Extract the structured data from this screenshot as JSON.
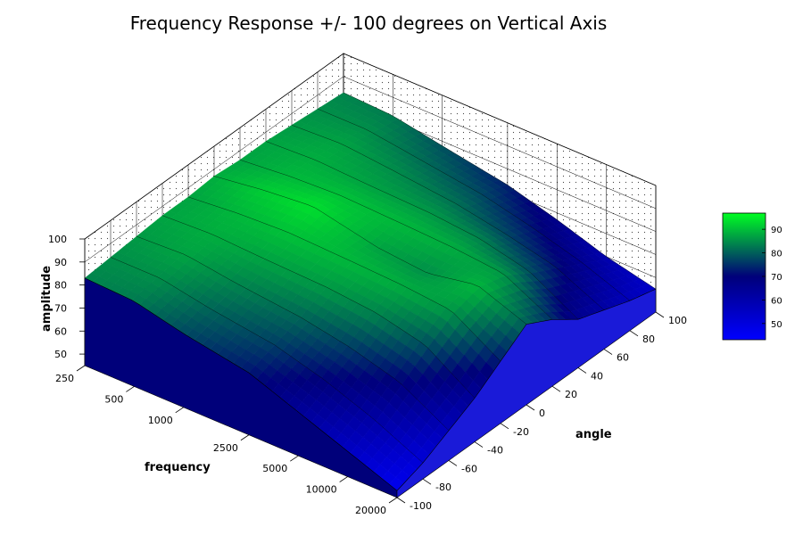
{
  "chart_data": {
    "type": "surface3d",
    "title": "Frequency Response +/- 100 degrees on Vertical Axis",
    "xlabel": "frequency",
    "ylabel": "angle",
    "zlabel": "amplitude",
    "x_ticks": [
      "250",
      "500",
      "1000",
      "2500",
      "5000",
      "10000",
      "20000"
    ],
    "y_ticks": [
      "-100",
      "-80",
      "-60",
      "-40",
      "-20",
      "0",
      "20",
      "40",
      "60",
      "80",
      "100"
    ],
    "z_ticks": [
      "50",
      "60",
      "70",
      "80",
      "90",
      "100"
    ],
    "colorbar_ticks": [
      "50",
      "60",
      "70",
      "80",
      "90"
    ],
    "x_scale": "log",
    "xlim": [
      250,
      20000
    ],
    "ylim": [
      -100,
      100
    ],
    "zlim": [
      45,
      100
    ],
    "colormap": [
      "#0000ff",
      "#00007a",
      "#00ff22"
    ],
    "color_range": [
      45,
      95
    ],
    "grid": true,
    "legend": "colorbar-right",
    "series": [
      {
        "angle": -100,
        "frequency": [
          250,
          500,
          1000,
          2500,
          5000,
          10000,
          20000
        ],
        "amplitude": [
          83,
          82,
          77,
          72,
          64,
          56,
          48
        ]
      },
      {
        "angle": -80,
        "frequency": [
          250,
          500,
          1000,
          2500,
          5000,
          10000,
          20000
        ],
        "amplitude": [
          84,
          84,
          80,
          76,
          70,
          62,
          52
        ]
      },
      {
        "angle": -60,
        "frequency": [
          250,
          500,
          1000,
          2500,
          5000,
          10000,
          20000
        ],
        "amplitude": [
          85,
          86,
          83,
          80,
          76,
          70,
          58
        ]
      },
      {
        "angle": -40,
        "frequency": [
          250,
          500,
          1000,
          2500,
          5000,
          10000,
          20000
        ],
        "amplitude": [
          86,
          87,
          86,
          85,
          83,
          78,
          64
        ]
      },
      {
        "angle": -20,
        "frequency": [
          250,
          500,
          1000,
          2500,
          5000,
          10000,
          20000
        ],
        "amplitude": [
          86,
          88,
          89,
          88,
          87,
          85,
          72
        ]
      },
      {
        "angle": 0,
        "frequency": [
          250,
          500,
          1000,
          2500,
          5000,
          10000,
          20000
        ],
        "amplitude": [
          87,
          90,
          92,
          86,
          84,
          88,
          80
        ]
      },
      {
        "angle": 20,
        "frequency": [
          250,
          500,
          1000,
          2500,
          5000,
          10000,
          20000
        ],
        "amplitude": [
          86,
          88,
          89,
          88,
          87,
          85,
          74
        ]
      },
      {
        "angle": 40,
        "frequency": [
          250,
          500,
          1000,
          2500,
          5000,
          10000,
          20000
        ],
        "amplitude": [
          86,
          87,
          86,
          85,
          83,
          78,
          66
        ]
      },
      {
        "angle": 60,
        "frequency": [
          250,
          500,
          1000,
          2500,
          5000,
          10000,
          20000
        ],
        "amplitude": [
          85,
          86,
          84,
          81,
          77,
          72,
          62
        ]
      },
      {
        "angle": 80,
        "frequency": [
          250,
          500,
          1000,
          2500,
          5000,
          10000,
          20000
        ],
        "amplitude": [
          84,
          84,
          81,
          77,
          72,
          66,
          58
        ]
      },
      {
        "angle": 100,
        "frequency": [
          250,
          500,
          1000,
          2500,
          5000,
          10000,
          20000
        ],
        "amplitude": [
          83,
          82,
          78,
          73,
          67,
          60,
          55
        ]
      }
    ]
  }
}
